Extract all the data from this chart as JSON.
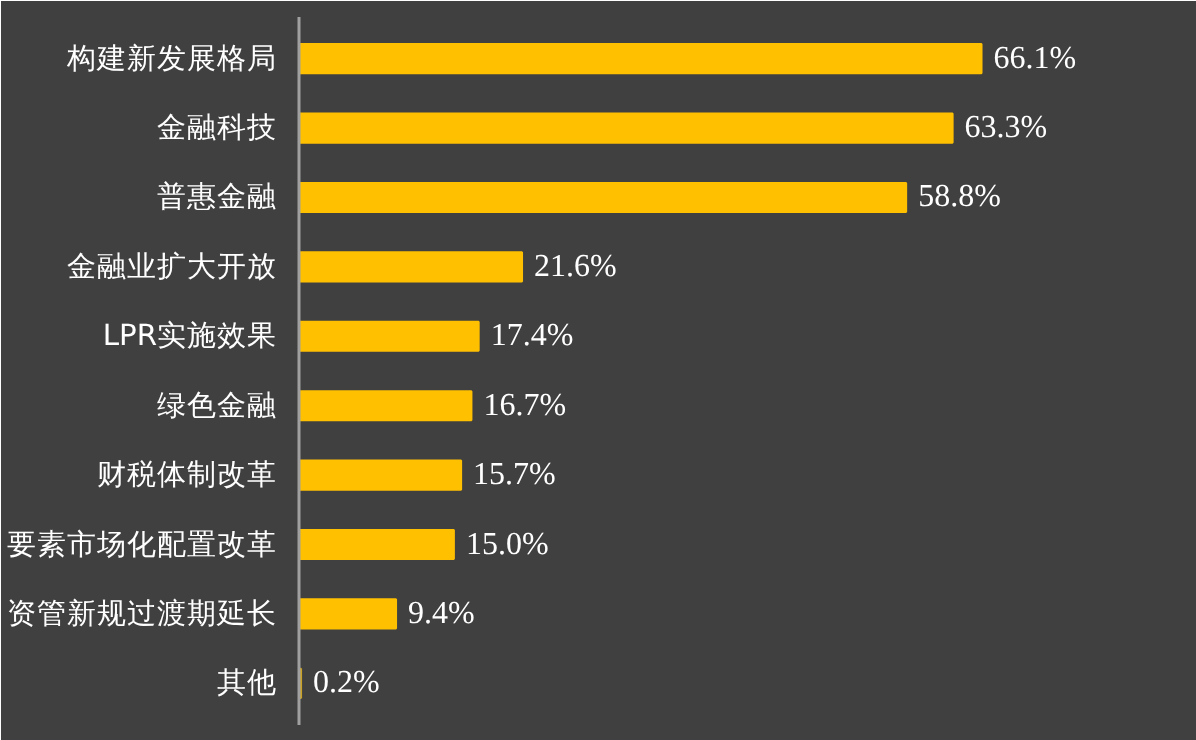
{
  "chart_data": {
    "type": "bar",
    "orientation": "horizontal",
    "categories": [
      "构建新发展格局",
      "金融科技",
      "普惠金融",
      "金融业扩大开放",
      "LPR实施效果",
      "绿色金融",
      "财税体制改革",
      "要素市场化配置改革",
      "资管新规过渡期延长",
      "其他"
    ],
    "values": [
      66.1,
      63.3,
      58.8,
      21.6,
      17.4,
      16.7,
      15.7,
      15.0,
      9.4,
      0.2
    ],
    "colors": [
      "#ffc000",
      "#ffc000",
      "#ffc000",
      "#ffc000",
      "#ffc000",
      "#ffc000",
      "#ffc000",
      "#ffc000",
      "#ffc000",
      "#c9a227"
    ],
    "value_labels": [
      "66.1%",
      "63.3%",
      "58.8%",
      "21.6%",
      "17.4%",
      "16.7%",
      "15.7%",
      "15.0%",
      "9.4%",
      "0.2%"
    ],
    "xlim": [
      0,
      86
    ]
  }
}
